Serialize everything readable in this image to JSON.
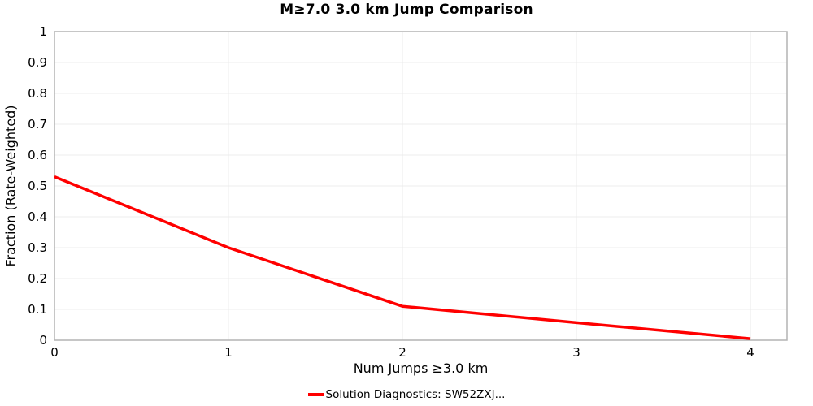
{
  "chart_data": {
    "type": "line",
    "title": "M≥7.0 3.0 km Jump Comparison",
    "xlabel": "Num Jumps ≥3.0 km",
    "ylabel": "Fraction (Rate-Weighted)",
    "series": [
      {
        "name": "Solution Diagnostics: SW52ZXJ...",
        "color": "#ff0000",
        "x": [
          0,
          1,
          2,
          3,
          4
        ],
        "y": [
          0.53,
          0.3,
          0.11,
          0.057,
          0.005
        ]
      }
    ],
    "xlim": [
      0,
      4.21
    ],
    "ylim": [
      0,
      1
    ],
    "xticks": {
      "values": [
        0,
        1,
        2,
        3,
        4
      ],
      "labels": [
        "0",
        "1",
        "2",
        "3",
        "4"
      ]
    },
    "yticks": {
      "values": [
        0,
        0.1,
        0.2,
        0.3,
        0.4,
        0.5,
        0.6,
        0.7,
        0.8,
        0.9,
        1
      ],
      "labels": [
        "0",
        "0.1",
        "0.2",
        "0.3",
        "0.4",
        "0.5",
        "0.6",
        "0.7",
        "0.8",
        "0.9",
        "1"
      ]
    },
    "grid": true,
    "legend_position": "bottom-center",
    "colors": {
      "line": "#ff0000",
      "grid": "#ececec",
      "border": "#b3b3b3",
      "text": "#000000",
      "background": "#ffffff"
    }
  }
}
